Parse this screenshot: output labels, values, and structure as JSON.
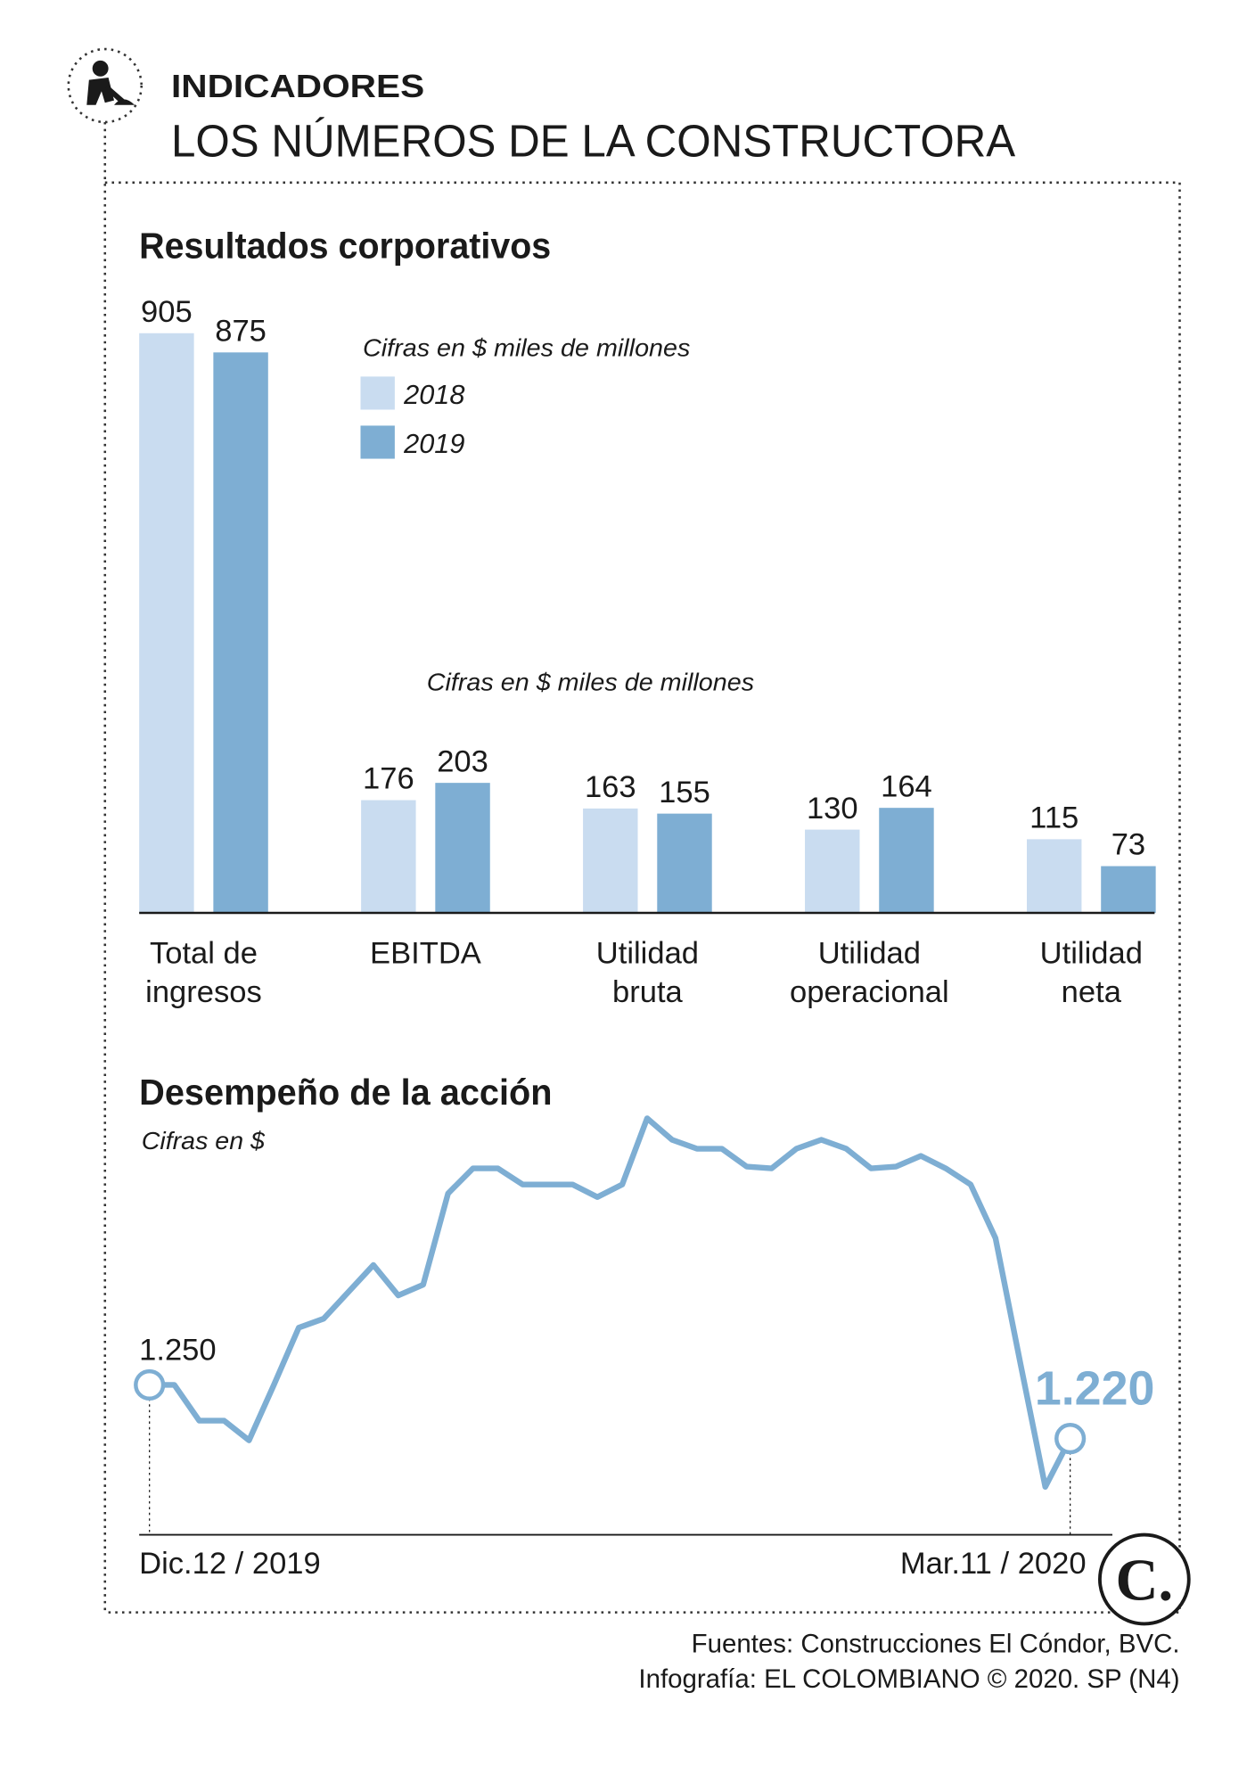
{
  "header": {
    "kicker": "INDICADORES",
    "title": "LOS NÚMEROS DE LA CONSTRUCTORA"
  },
  "chart_data": [
    {
      "type": "bar",
      "title": "Resultados corporativos",
      "notes": [
        "Cifras en $ miles de millones",
        "Cifras en $ miles de millones"
      ],
      "categories": [
        "Total de ingresos",
        "EBITDA",
        "Utilidad bruta",
        "Utilidad operacional",
        "Utilidad neta"
      ],
      "series": [
        {
          "name": "2018",
          "color": "#c9dcf0",
          "values": [
            905,
            176,
            163,
            130,
            115
          ]
        },
        {
          "name": "2019",
          "color": "#7eaed3",
          "values": [
            875,
            203,
            155,
            164,
            73
          ]
        }
      ]
    },
    {
      "type": "line",
      "title": "Desempeño de la acción",
      "subtitle": "Cifras en $",
      "color": "#7eaed3",
      "categories": [
        "Dic.12 / 2019",
        null,
        null,
        null,
        null,
        null,
        null,
        null,
        null,
        null,
        null,
        null,
        null,
        null,
        null,
        null,
        null,
        null,
        null,
        null,
        null,
        null,
        null,
        null,
        null,
        null,
        null,
        null,
        null,
        null,
        null,
        null,
        null,
        null,
        null,
        null,
        null,
        "Mar.11 / 2020"
      ],
      "values": [
        1250,
        1250,
        1230,
        1230,
        1219,
        1250,
        1282,
        1287,
        1302,
        1317,
        1300,
        1306,
        1357,
        1371,
        1371,
        1362,
        1362,
        1362,
        1355,
        1362,
        1399,
        1387,
        1382,
        1382,
        1372,
        1371,
        1382,
        1387,
        1382,
        1371,
        1372,
        1378,
        1371,
        1362,
        1332,
        1262,
        1193,
        1220
      ],
      "value_labels": [
        "1.250",
        null,
        null,
        null,
        null,
        null,
        null,
        null,
        null,
        null,
        null,
        null,
        null,
        null,
        null,
        null,
        null,
        null,
        null,
        null,
        null,
        null,
        null,
        null,
        null,
        null,
        null,
        null,
        null,
        null,
        null,
        null,
        null,
        null,
        null,
        null,
        null,
        "1.220"
      ]
    }
  ],
  "footer": {
    "sources": "Fuentes: Construcciones El Cóndor, BVC.",
    "credit": "Infografía: EL COLOMBIANO © 2020. SP (N4)",
    "logo": "C."
  }
}
